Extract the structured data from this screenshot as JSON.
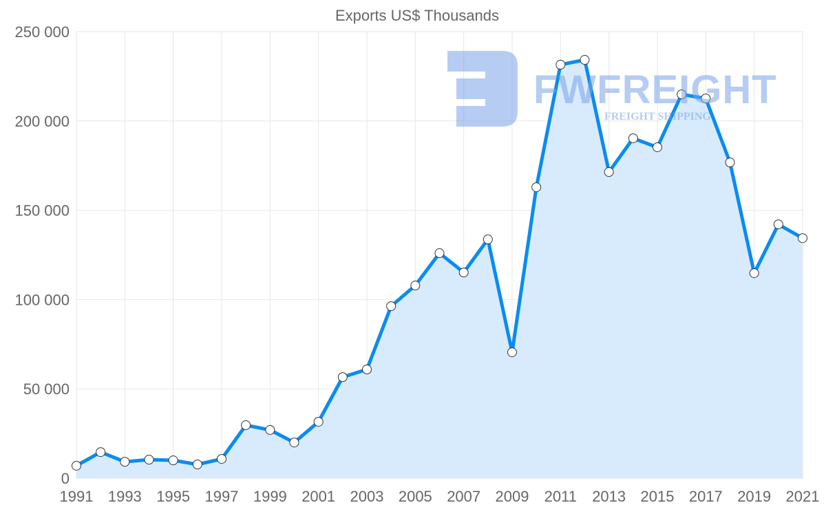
{
  "chart_data": {
    "type": "area",
    "title": "Exports US$ Thousands",
    "xlabel": "",
    "ylabel": "",
    "x": [
      1991,
      1992,
      1993,
      1994,
      1995,
      1996,
      1997,
      1998,
      1999,
      2000,
      2001,
      2002,
      2003,
      2004,
      2005,
      2006,
      2007,
      2008,
      2009,
      2010,
      2011,
      2012,
      2013,
      2014,
      2015,
      2016,
      2017,
      2018,
      2019,
      2020,
      2021
    ],
    "series": [
      {
        "name": "Exports US$ Thousands",
        "values": [
          7000,
          14600,
          9200,
          10400,
          10000,
          7700,
          10800,
          29700,
          27000,
          20000,
          31600,
          56600,
          60900,
          96300,
          107900,
          126000,
          115200,
          133700,
          70500,
          162900,
          231500,
          234200,
          171400,
          190300,
          185300,
          214900,
          212600,
          176800,
          114800,
          142100,
          134400
        ]
      }
    ],
    "ylim": [
      0,
      250000
    ],
    "xlim": [
      1991,
      2021
    ],
    "y_ticks": [
      "0",
      "50 000",
      "100 000",
      "150 000",
      "200 000",
      "250 000"
    ],
    "y_tick_values": [
      0,
      50000,
      100000,
      150000,
      200000,
      250000
    ],
    "x_ticks": [
      "1991",
      "1993",
      "1995",
      "1997",
      "1999",
      "2001",
      "2003",
      "2005",
      "2007",
      "2009",
      "2011",
      "2013",
      "2015",
      "2017",
      "2019",
      "2021"
    ],
    "grid": true,
    "legend": "none",
    "colors": {
      "line": "#0a8cf0",
      "fill": "#d8ebfd",
      "point_fill": "#ffffff",
      "point_stroke": "#333333",
      "grid": "#e6e6e6",
      "watermark": "#7aa3ea"
    }
  },
  "watermark": {
    "brand": "FWFREIGHT",
    "tagline": "FREIGHT SHIPPING"
  }
}
